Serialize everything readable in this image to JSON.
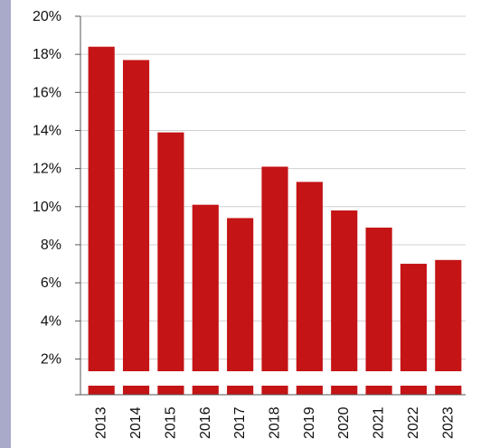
{
  "chart_data": {
    "type": "bar",
    "categories": [
      "2013",
      "2014",
      "2015",
      "2016",
      "2017",
      "2018",
      "2019",
      "2020",
      "2021",
      "2022",
      "2023"
    ],
    "values": [
      18.4,
      17.7,
      13.9,
      10.1,
      9.4,
      12.1,
      11.3,
      9.8,
      8.9,
      7.0,
      7.2
    ],
    "title": "",
    "xlabel": "",
    "ylabel": "",
    "ylim": [
      0,
      20
    ],
    "y_ticks": [
      2,
      4,
      6,
      8,
      10,
      12,
      14,
      16,
      18,
      20
    ],
    "y_tick_format": "%",
    "grid": true,
    "axis_break": true,
    "bar_color": "#c41416",
    "grid_color": "#d0d0d0",
    "side_band_color": "#a9aac9"
  }
}
